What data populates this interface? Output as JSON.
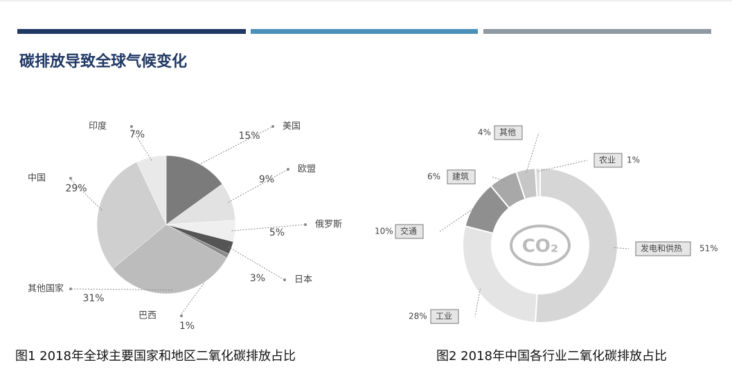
{
  "header": {
    "title": "碳排放导致全球气候变化"
  },
  "chart_data": [
    {
      "type": "pie",
      "title": "图1 2018年全球主要国家和地区二氧化碳排放占比",
      "categories": [
        "美国",
        "欧盟",
        "俄罗斯",
        "日本",
        "巴西",
        "其他国家",
        "中国",
        "印度"
      ],
      "values": [
        15,
        9,
        5,
        3,
        1,
        31,
        29,
        7
      ],
      "value_labels": [
        "15%",
        "9%",
        "5%",
        "3%",
        "1%",
        "31%",
        "29%",
        "7%"
      ],
      "colors": [
        "#7b7b7b",
        "#e2e2e2",
        "#efefef",
        "#555555",
        "#8a8a8a",
        "#bcbcbc",
        "#cfcfcf",
        "#e9e9e9"
      ]
    },
    {
      "type": "donut",
      "title": "图2 2018年中国各行业二氧化碳排放占比",
      "center_label": "CO₂",
      "categories": [
        "发电和供热",
        "工业",
        "交通",
        "建筑",
        "其他",
        "农业"
      ],
      "values": [
        51,
        28,
        10,
        6,
        4,
        1
      ],
      "value_labels": [
        "51%",
        "28%",
        "10%",
        "6%",
        "4%",
        "1%"
      ],
      "colors": [
        "#d6d6d6",
        "#e4e4e4",
        "#8f8f8f",
        "#a8a8a8",
        "#c6c6c6",
        "#dedede"
      ]
    }
  ]
}
